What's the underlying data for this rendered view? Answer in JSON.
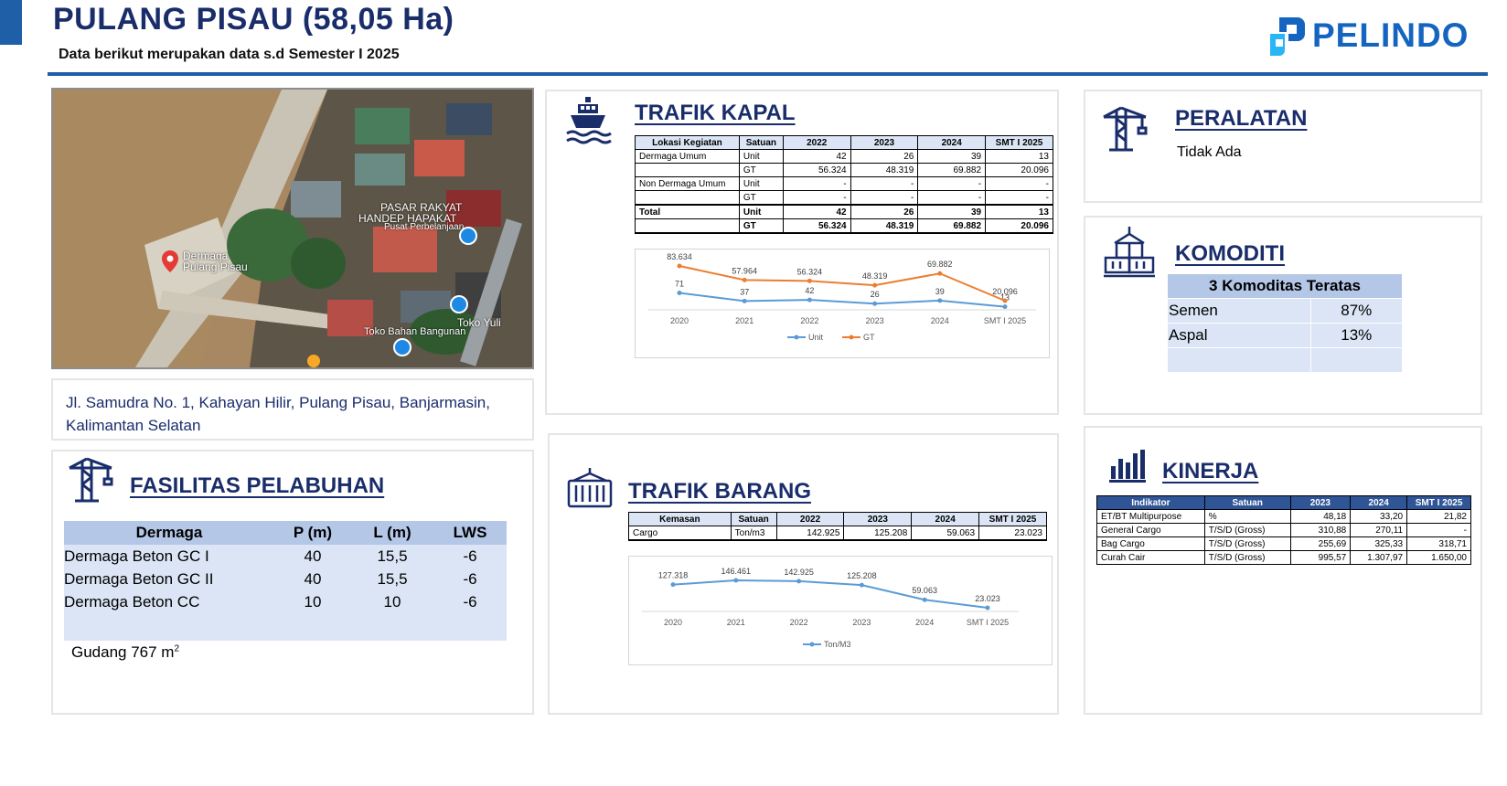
{
  "header": {
    "title": "PULANG PISAU (58,05 Ha)",
    "subtitle": "Data berikut merupakan data s.d Semester I 2025",
    "logo_text": "PELINDO",
    "brand_color": "#1f5fa8"
  },
  "map": {
    "labels": {
      "dermaga": "Dermaga\nPulang Pisau",
      "pasar_1": "PASAR RAKYAT",
      "pasar_2": "HANDEP HAPAKAT",
      "pasar_3": "Pusat Perbelanjaan",
      "toko_1": "Toko Yuli",
      "toko_2": "Toko Bahan Bangunan"
    }
  },
  "address": "Jl. Samudra No. 1, Kahayan Hilir, Pulang Pisau, Banjarmasin, Kalimantan Selatan",
  "fasilitas": {
    "title": "FASILITAS PELABUHAN",
    "headers": [
      "Dermaga",
      "P (m)",
      "L (m)",
      "LWS"
    ],
    "rows": [
      [
        "Dermaga Beton GC I",
        "40",
        "15,5",
        "-6"
      ],
      [
        "Dermaga Beton GC II",
        "40",
        "15,5",
        "-6"
      ],
      [
        "Dermaga Beton CC",
        "10",
        "10",
        "-6"
      ]
    ],
    "gudang_label": "Gudang 767 m",
    "gudang_sup": "2"
  },
  "trafik_kapal": {
    "title": "TRAFIK KAPAL",
    "headers": [
      "Lokasi Kegiatan",
      "Satuan",
      "2022",
      "2023",
      "2024",
      "SMT I 2025"
    ],
    "rows": [
      [
        "Dermaga Umum",
        "Unit",
        "42",
        "26",
        "39",
        "13"
      ],
      [
        "",
        "GT",
        "56.324",
        "48.319",
        "69.882",
        "20.096"
      ],
      [
        "Non Dermaga Umum",
        "Unit",
        "-",
        "-",
        "-",
        "-"
      ],
      [
        "",
        "GT",
        "-",
        "-",
        "-",
        "-"
      ],
      [
        "Total",
        "Unit",
        "42",
        "26",
        "39",
        "13"
      ],
      [
        "",
        "GT",
        "56.324",
        "48.319",
        "69.882",
        "20.096"
      ]
    ]
  },
  "trafik_barang": {
    "title": "TRAFIK BARANG",
    "headers": [
      "Kemasan",
      "Satuan",
      "2022",
      "2023",
      "2024",
      "SMT I 2025"
    ],
    "rows": [
      [
        "Cargo",
        "Ton/m3",
        "142.925",
        "125.208",
        "59.063",
        "23.023"
      ]
    ]
  },
  "peralatan": {
    "title": "PERALATAN",
    "text": "Tidak Ada"
  },
  "komoditi": {
    "title": "KOMODITI",
    "header": "3 Komoditas Teratas",
    "rows": [
      [
        "Semen",
        "87%"
      ],
      [
        "Aspal",
        "13%"
      ],
      [
        "",
        ""
      ]
    ]
  },
  "kinerja": {
    "title": "KINERJA",
    "headers": [
      "Indikator",
      "Satuan",
      "2023",
      "2024",
      "SMT I 2025"
    ],
    "rows": [
      [
        "ET/BT Multipurpose",
        "%",
        "48,18",
        "33,20",
        "21,82"
      ],
      [
        "General Cargo",
        "T/S/D (Gross)",
        "310,88",
        "270,11",
        "-"
      ],
      [
        "Bag Cargo",
        "T/S/D (Gross)",
        "255,69",
        "325,33",
        "318,71"
      ],
      [
        "Curah Cair",
        "T/S/D (Gross)",
        "995,57",
        "1.307,97",
        "1.650,00"
      ]
    ]
  },
  "chart_data": [
    {
      "type": "line",
      "categories": [
        "2020",
        "2021",
        "2022",
        "2023",
        "2024",
        "SMT I 2025"
      ],
      "series": [
        {
          "name": "Unit",
          "values": [
            71,
            37,
            42,
            26,
            39,
            13
          ],
          "labels": [
            "71",
            "37",
            "42",
            "26",
            "39",
            "13"
          ],
          "color": "#5b9bd5"
        },
        {
          "name": "GT",
          "values": [
            83634,
            57964,
            56324,
            48319,
            69882,
            20096
          ],
          "labels": [
            "83.634",
            "57.964",
            "56.324",
            "48.319",
            "69.882",
            "20.096"
          ],
          "color": "#ed7d31"
        }
      ],
      "grid": false,
      "legend": "bottom"
    },
    {
      "type": "line",
      "categories": [
        "2020",
        "2021",
        "2022",
        "2023",
        "2024",
        "SMT I 2025"
      ],
      "series": [
        {
          "name": "Ton/M3",
          "values": [
            127318,
            146461,
            142925,
            125208,
            59063,
            23023
          ],
          "labels": [
            "127.318",
            "146.461",
            "142.925",
            "125.208",
            "59.063",
            "23.023"
          ],
          "color": "#5b9bd5"
        }
      ],
      "grid": false,
      "legend": "bottom"
    }
  ]
}
